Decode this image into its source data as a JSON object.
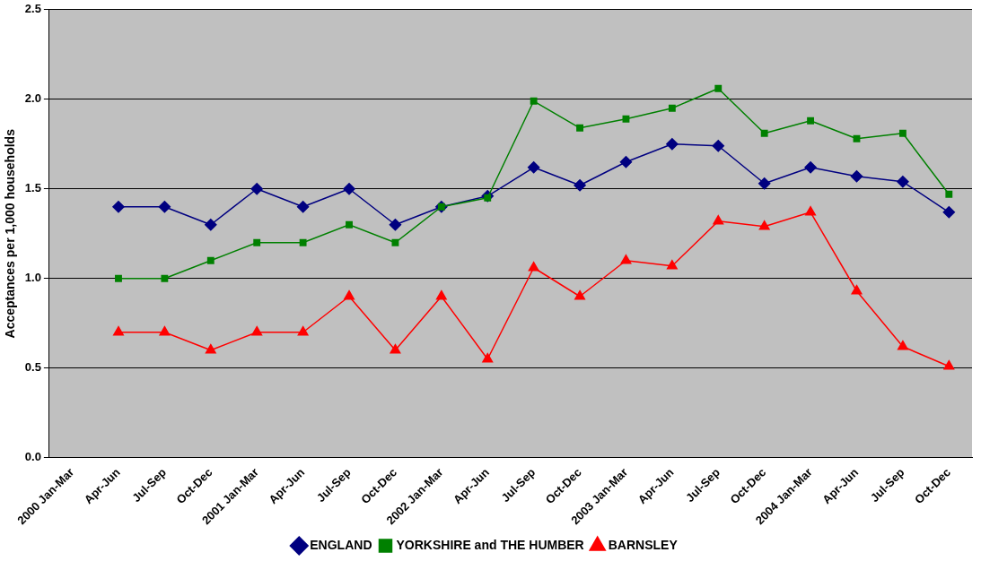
{
  "chart_data": {
    "type": "line",
    "ylabel": "Acceptances per 1,000 households",
    "categories": [
      "2000 Jan-Mar",
      "Apr-Jun",
      "Jul-Sep",
      "Oct-Dec",
      "2001 Jan-Mar",
      "Apr-Jun",
      "Jul-Sep",
      "Oct-Dec",
      "2002 Jan-Mar",
      "Apr-Jun",
      "Jul-Sep",
      "Oct-Dec",
      "2003 Jan-Mar",
      "Apr-Jun",
      "Jul-Sep",
      "Oct-Dec",
      "2004 Jan-Mar",
      "Apr-Jun",
      "Jul-Sep",
      "Oct-Dec"
    ],
    "series": [
      {
        "name": "ENGLAND",
        "color": "#000080",
        "marker": "diamond",
        "values": [
          null,
          1.4,
          1.4,
          1.3,
          1.5,
          1.4,
          1.5,
          1.3,
          1.4,
          1.46,
          1.62,
          1.52,
          1.65,
          1.75,
          1.74,
          1.53,
          1.62,
          1.57,
          1.54,
          1.37
        ]
      },
      {
        "name": "YORKSHIRE and THE HUMBER",
        "color": "#008000",
        "marker": "square",
        "values": [
          null,
          1.0,
          1.0,
          1.1,
          1.2,
          1.2,
          1.3,
          1.2,
          1.4,
          1.45,
          1.99,
          1.84,
          1.89,
          1.95,
          2.06,
          1.81,
          1.88,
          1.78,
          1.81,
          1.47
        ]
      },
      {
        "name": "BARNSLEY",
        "color": "#ff0000",
        "marker": "triangle",
        "values": [
          null,
          0.7,
          0.7,
          0.6,
          0.7,
          0.7,
          0.9,
          0.6,
          0.9,
          0.55,
          1.06,
          0.9,
          1.1,
          1.07,
          1.32,
          1.29,
          1.37,
          0.93,
          0.62,
          0.51
        ]
      }
    ],
    "ylim": [
      0,
      2.5
    ],
    "yticks": [
      {
        "value": 0,
        "label": "0.0"
      },
      {
        "value": 0.5,
        "label": "0.5"
      },
      {
        "value": 1,
        "label": "1.0"
      },
      {
        "value": 1.5,
        "label": "1.5"
      },
      {
        "value": 2,
        "label": "2.0"
      },
      {
        "value": 2.5,
        "label": "2.5"
      }
    ],
    "grid": "y",
    "legend": "bottom"
  }
}
